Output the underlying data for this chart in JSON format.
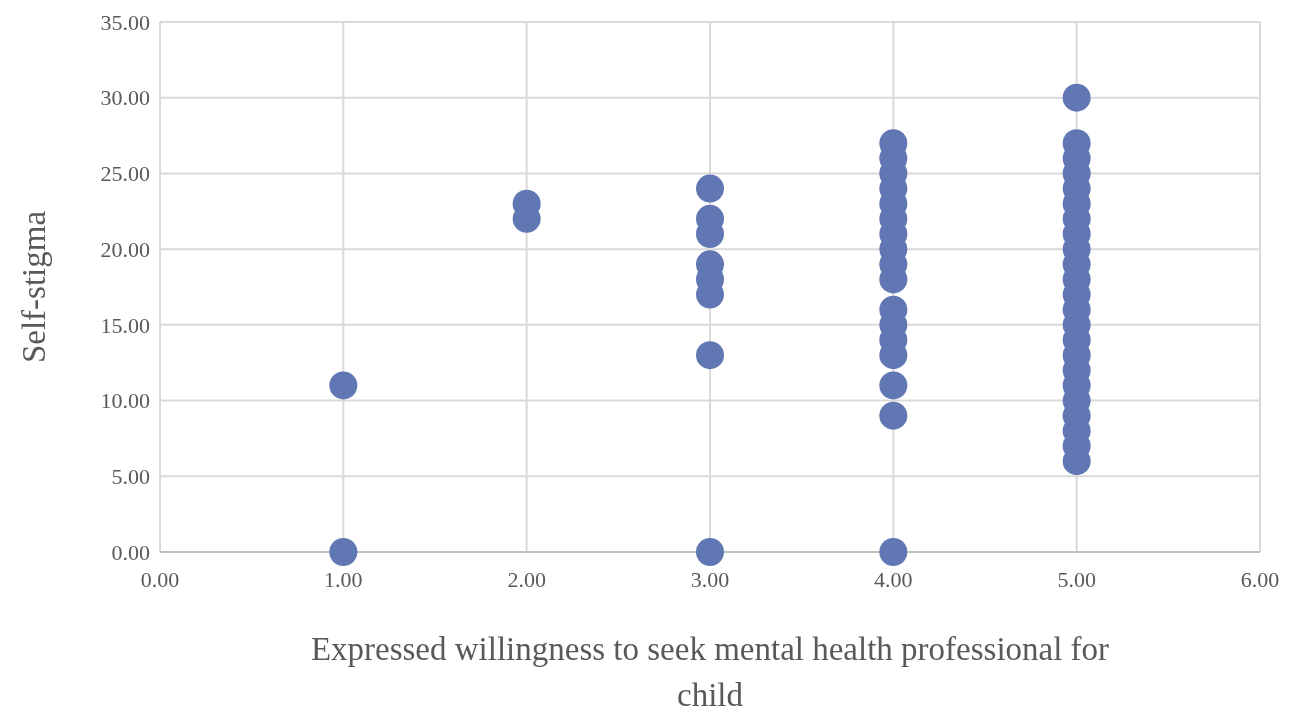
{
  "chart_data": {
    "type": "scatter",
    "xlabel": "Expressed willingness to seek mental health professional for child",
    "ylabel": "Self-stigma",
    "series": [
      {
        "color": "#6177b4",
        "x": [
          1,
          1,
          2,
          2,
          3,
          3,
          3,
          3,
          3,
          3,
          3,
          3,
          4,
          4,
          4,
          4,
          4,
          4,
          4,
          4,
          4,
          4,
          4,
          4,
          4,
          4,
          4,
          4,
          4,
          5,
          5,
          5,
          5,
          5,
          5,
          5,
          5,
          5,
          5,
          5,
          5,
          5,
          5,
          5,
          5,
          5,
          5,
          5,
          5,
          5,
          5,
          5
        ],
        "values": [
          11,
          0,
          23,
          22,
          24,
          22,
          21,
          19,
          18,
          17,
          13,
          0,
          27,
          26,
          25,
          24,
          23,
          22,
          21,
          20,
          19,
          18,
          16,
          15,
          14,
          13,
          11,
          9,
          0,
          30,
          27,
          26,
          25,
          24,
          23,
          22,
          21,
          20,
          19,
          18,
          17,
          16,
          15,
          14,
          13,
          12,
          11,
          10,
          9,
          8,
          7,
          6
        ]
      }
    ],
    "xlim": [
      0,
      6
    ],
    "xticks": [
      {
        "value": 0,
        "label": "0.00"
      },
      {
        "value": 1,
        "label": "1.00"
      },
      {
        "value": 2,
        "label": "2.00"
      },
      {
        "value": 3,
        "label": "3.00"
      },
      {
        "value": 4,
        "label": "4.00"
      },
      {
        "value": 5,
        "label": "5.00"
      },
      {
        "value": 6,
        "label": "6.00"
      }
    ],
    "ylim": [
      0,
      35
    ],
    "yticks": [
      {
        "value": 0,
        "label": "0.00"
      },
      {
        "value": 5,
        "label": "5.00"
      },
      {
        "value": 10,
        "label": "10.00"
      },
      {
        "value": 15,
        "label": "15.00"
      },
      {
        "value": 20,
        "label": "20.00"
      },
      {
        "value": 25,
        "label": "25.00"
      },
      {
        "value": 30,
        "label": "30.00"
      },
      {
        "value": 35,
        "label": "35.00"
      }
    ],
    "grid": true,
    "marker": "circle"
  }
}
